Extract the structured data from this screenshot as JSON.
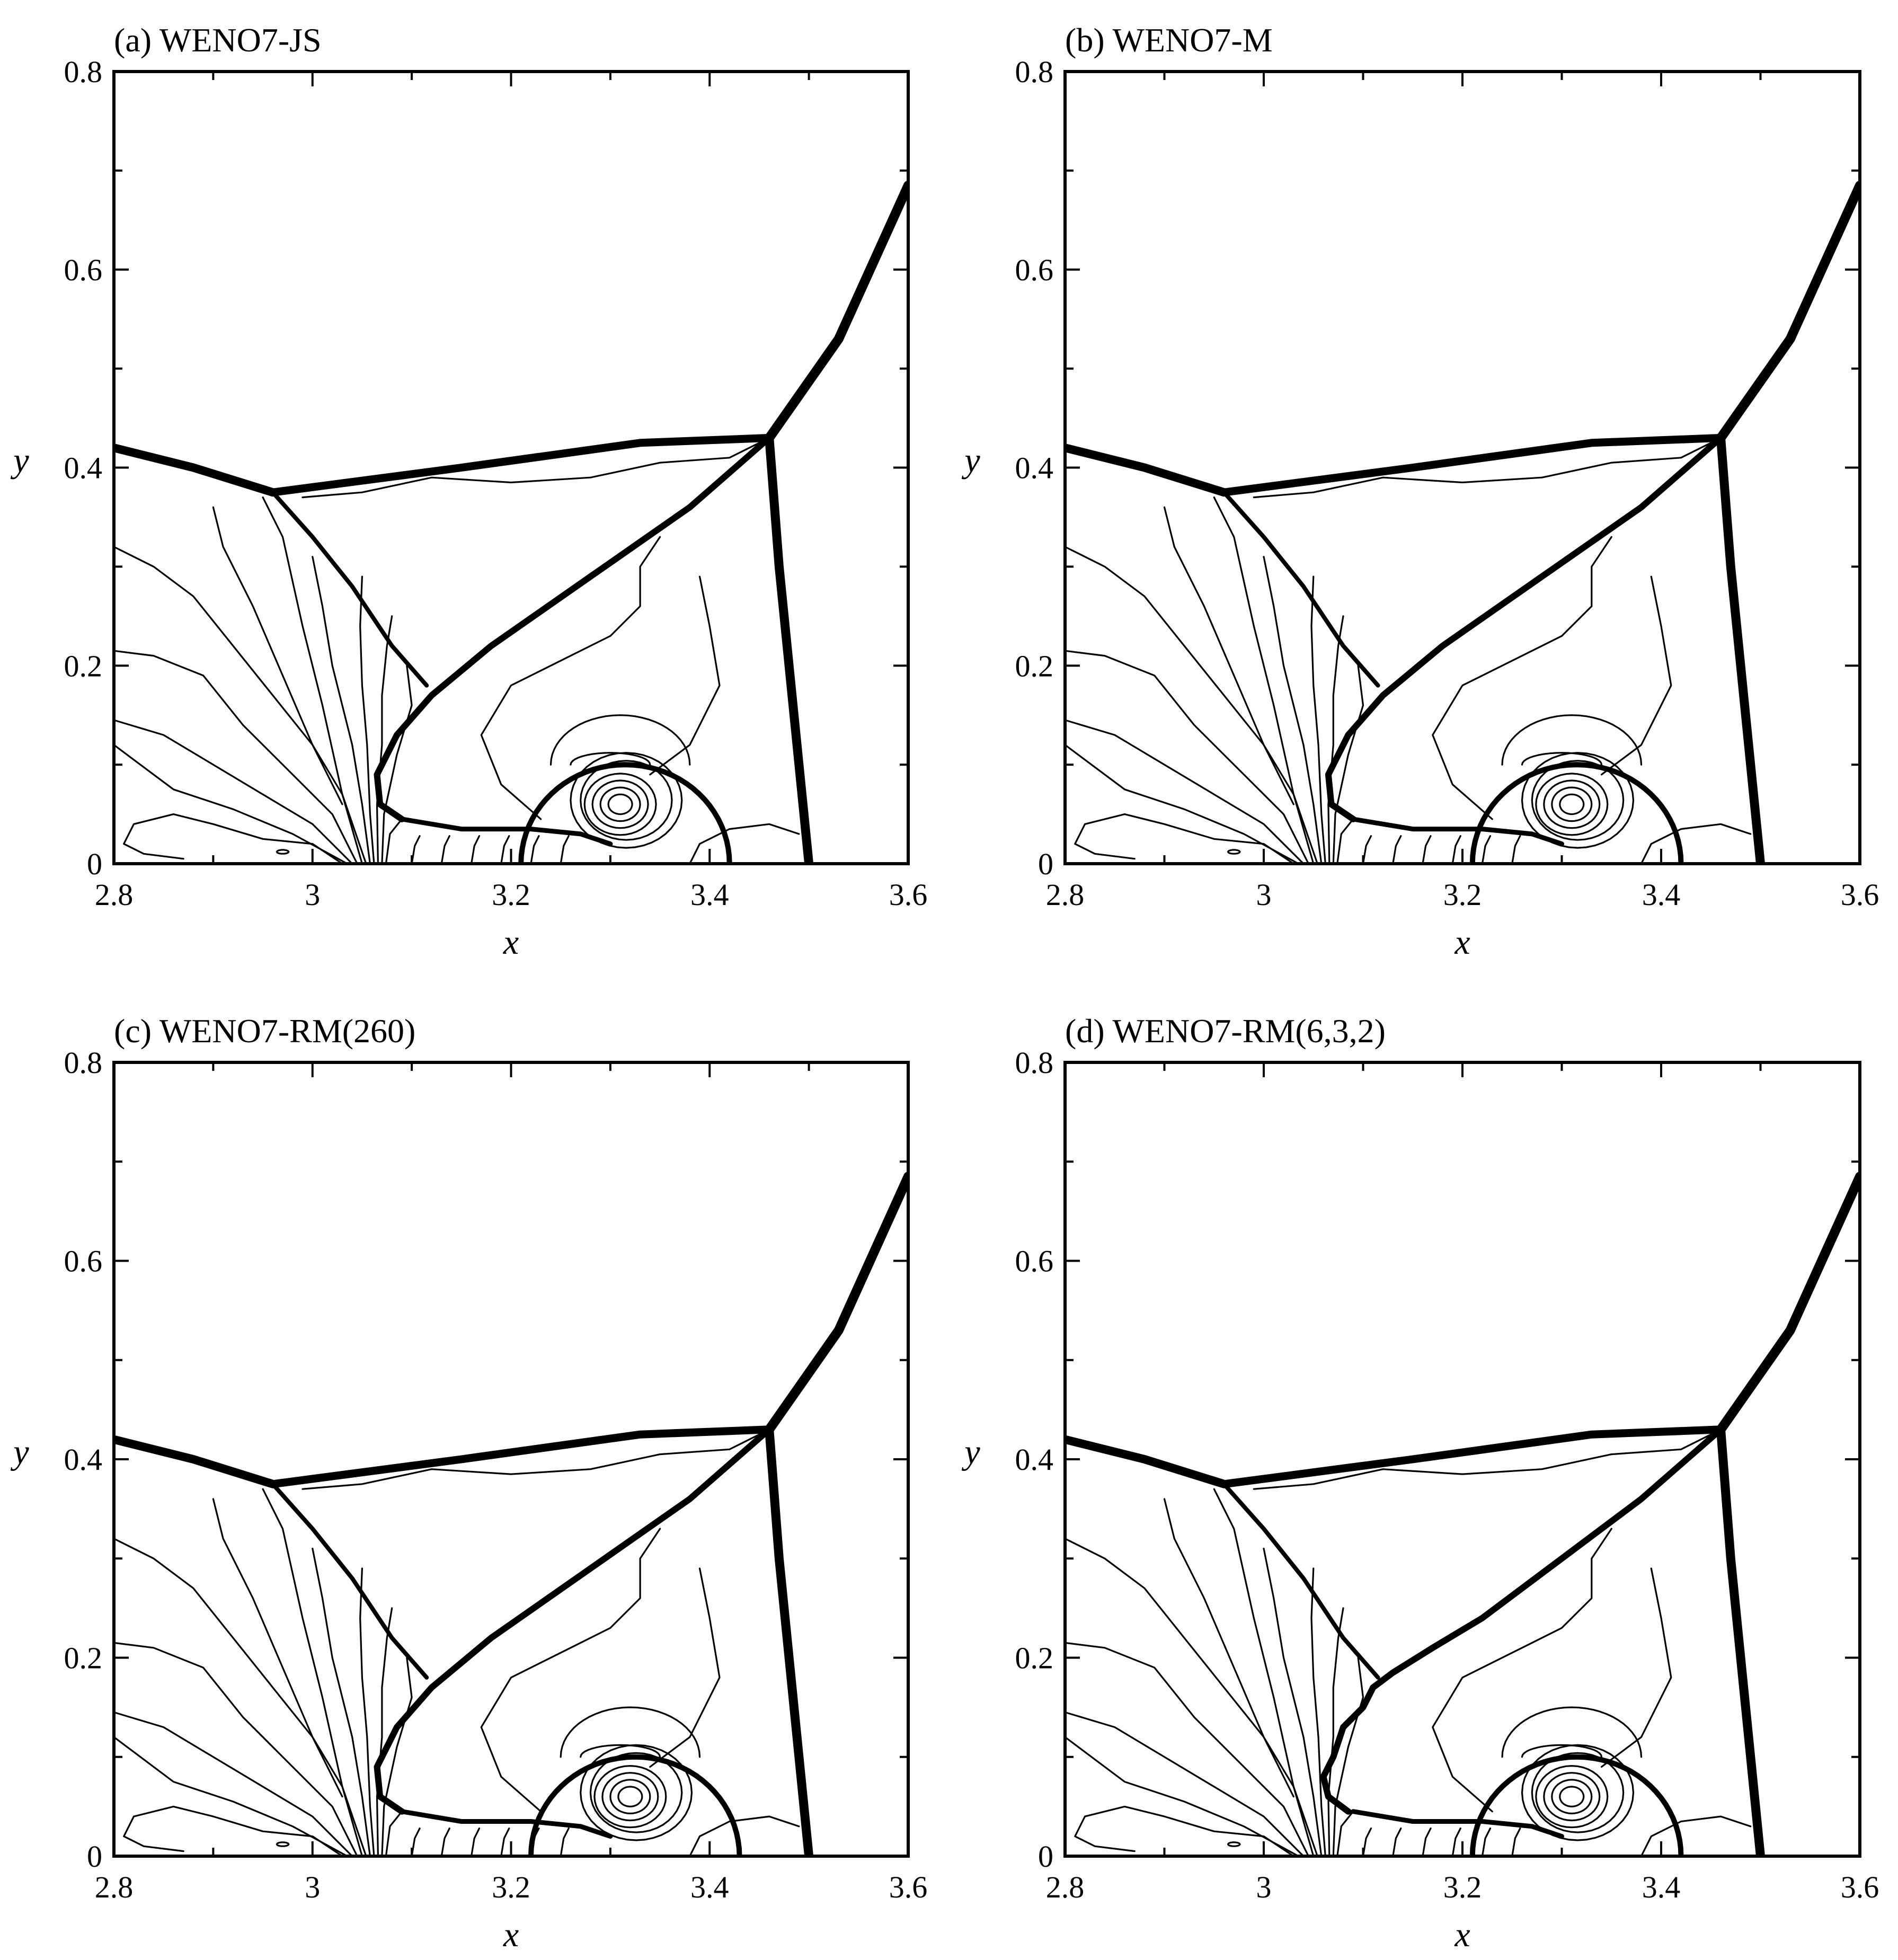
{
  "chart_data": [
    {
      "type": "contour",
      "title": "(a) WENO7-JS",
      "xlabel": "x",
      "ylabel": "y",
      "xlim": [
        2.8,
        3.6
      ],
      "ylim": [
        0,
        0.8
      ],
      "xticks": [
        2.8,
        3,
        3.2,
        3.4,
        3.6
      ],
      "xtick_labels": [
        "2.8",
        "3",
        "3.2",
        "3.4",
        "3.6"
      ],
      "yticks": [
        0,
        0.2,
        0.4,
        0.6,
        0.8
      ],
      "ytick_labels": [
        "0",
        "0.2",
        "0.4",
        "0.6",
        "0.8"
      ],
      "features": {
        "triple_point_left": [
          2.96,
          0.375
        ],
        "triple_point_right": [
          3.46,
          0.43
        ],
        "vortex_center": [
          3.31,
          0.06
        ]
      }
    },
    {
      "type": "contour",
      "title": "(b) WENO7-M",
      "xlabel": "x",
      "ylabel": "y",
      "xlim": [
        2.8,
        3.6
      ],
      "ylim": [
        0,
        0.8
      ],
      "xticks": [
        2.8,
        3,
        3.2,
        3.4,
        3.6
      ],
      "xtick_labels": [
        "2.8",
        "3",
        "3.2",
        "3.4",
        "3.6"
      ],
      "yticks": [
        0,
        0.2,
        0.4,
        0.6,
        0.8
      ],
      "ytick_labels": [
        "0",
        "0.2",
        "0.4",
        "0.6",
        "0.8"
      ],
      "features": {
        "triple_point_left": [
          2.96,
          0.375
        ],
        "triple_point_right": [
          3.46,
          0.43
        ],
        "vortex_center": [
          3.31,
          0.06
        ]
      }
    },
    {
      "type": "contour",
      "title": "(c) WENO7-RM(260)",
      "xlabel": "x",
      "ylabel": "y",
      "xlim": [
        2.8,
        3.6
      ],
      "ylim": [
        0,
        0.8
      ],
      "xticks": [
        2.8,
        3,
        3.2,
        3.4,
        3.6
      ],
      "xtick_labels": [
        "2.8",
        "3",
        "3.2",
        "3.4",
        "3.6"
      ],
      "yticks": [
        0,
        0.2,
        0.4,
        0.6,
        0.8
      ],
      "ytick_labels": [
        "0",
        "0.2",
        "0.4",
        "0.6",
        "0.8"
      ],
      "features": {
        "triple_point_left": [
          2.96,
          0.375
        ],
        "triple_point_right": [
          3.46,
          0.43
        ],
        "vortex_center": [
          3.32,
          0.06
        ]
      }
    },
    {
      "type": "contour",
      "title": "(d) WENO7-RM(6,3,2)",
      "xlabel": "x",
      "ylabel": "y",
      "xlim": [
        2.8,
        3.6
      ],
      "ylim": [
        0,
        0.8
      ],
      "xticks": [
        2.8,
        3,
        3.2,
        3.4,
        3.6
      ],
      "xtick_labels": [
        "2.8",
        "3",
        "3.2",
        "3.4",
        "3.6"
      ],
      "yticks": [
        0,
        0.2,
        0.4,
        0.6,
        0.8
      ],
      "ytick_labels": [
        "0",
        "0.2",
        "0.4",
        "0.6",
        "0.8"
      ],
      "features": {
        "triple_point_left": [
          2.96,
          0.375
        ],
        "triple_point_right": [
          3.46,
          0.43
        ],
        "vortex_center": [
          3.31,
          0.06
        ]
      }
    }
  ]
}
